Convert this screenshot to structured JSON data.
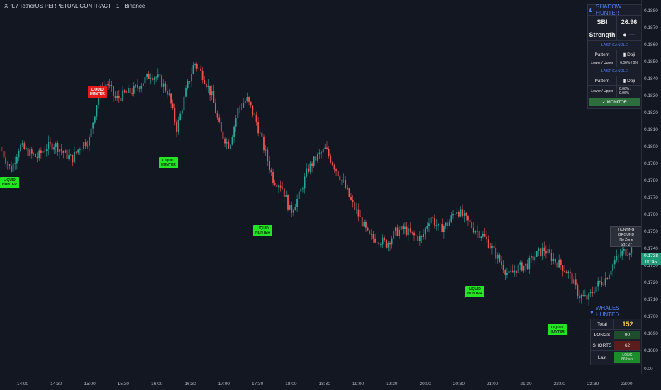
{
  "header": {
    "title": "XPL / TetherUS PERPETUAL CONTRACT · 1 · Binance"
  },
  "price_axis": {
    "labels": [
      "0.1880",
      "0.1870",
      "0.1860",
      "0.1850",
      "0.1840",
      "0.1830",
      "0.1820",
      "0.1810",
      "0.1800",
      "0.1790",
      "0.1780",
      "0.1770",
      "0.1760",
      "0.1750",
      "0.1740",
      "0.1730",
      "0.1720",
      "0.1710",
      "0.1700",
      "0.1690",
      "0.1680",
      "0.00"
    ],
    "current_price": "0.1738",
    "countdown": "00:45"
  },
  "time_axis": {
    "labels": [
      "14:00",
      "14:30",
      "15:00",
      "15:30",
      "16:00",
      "16:30",
      "17:00",
      "17:30",
      "18:00",
      "18:30",
      "19:00",
      "19:30",
      "20:00",
      "20:30",
      "21:00",
      "21:30",
      "22:00",
      "22:30",
      "23:00"
    ]
  },
  "shadow_hunter": {
    "title": "SHADOW HUNTER",
    "sbi_label": "SBI",
    "sbi_value": "26.96",
    "strength_label": "Strength",
    "strength_value": "---",
    "section1": "LAST CANDLE",
    "pattern_label": "Pattern",
    "pattern_value": "Doji",
    "lu_label": "Lower / Upper",
    "lu_value1": "0.06% / 0%",
    "section2": "LAST CANDLE",
    "pattern_value2": "Doji",
    "lu_value2": "0.06% / 0.06%",
    "monitor_label": "✓ MONITOR"
  },
  "hunting_box": {
    "line1": "HUNTING GROUND",
    "line2": "No Zone",
    "line3": "SBI: 27"
  },
  "whales": {
    "title": "WHALES HUNTED",
    "total_label": "Total",
    "total_value": "152",
    "longs_label": "LONGS",
    "longs_value": "90",
    "shorts_label": "SHORTS",
    "shorts_value": "62",
    "last_label": "Last",
    "last_value1": "LONG",
    "last_value2": "86 bars"
  },
  "tags": {
    "liquid": "LIQUID",
    "hunter": "HUNTER"
  },
  "colors": {
    "up": "#26a69a",
    "down": "#ef5350",
    "accent": "#4f7df2",
    "green_tag": "#22e622",
    "red_tag": "#e51c1c"
  },
  "chart_data": {
    "type": "candlestick",
    "price_range": [
      0.167,
      0.1885
    ],
    "series_close": [
      0.1797,
      0.1785,
      0.18,
      0.1796,
      0.1793,
      0.1799,
      0.1801,
      0.1796,
      0.1792,
      0.18,
      0.1804,
      0.183,
      0.1838,
      0.1828,
      0.1831,
      0.1833,
      0.1838,
      0.1843,
      0.184,
      0.1832,
      0.181,
      0.1832,
      0.185,
      0.1842,
      0.183,
      0.1808,
      0.18,
      0.1822,
      0.1828,
      0.1816,
      0.1798,
      0.178,
      0.1776,
      0.176,
      0.177,
      0.1786,
      0.1793,
      0.1798,
      0.1788,
      0.1778,
      0.1766,
      0.1756,
      0.1745,
      0.1744,
      0.1741,
      0.1748,
      0.175,
      0.1746,
      0.1744,
      0.1758,
      0.175,
      0.1753,
      0.1762,
      0.1756,
      0.175,
      0.1746,
      0.1739,
      0.173,
      0.1722,
      0.1727,
      0.1728,
      0.1734,
      0.1738,
      0.1732,
      0.1728,
      0.1722,
      0.171,
      0.1708,
      0.1716,
      0.172,
      0.173,
      0.1736,
      0.1738
    ]
  }
}
